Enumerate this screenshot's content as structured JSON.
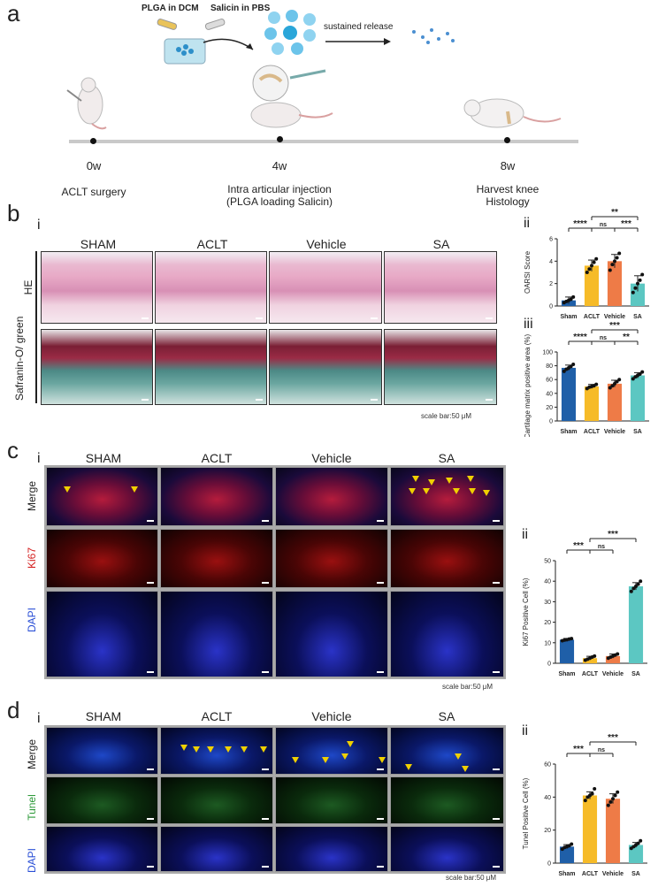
{
  "panel_a": {
    "letter": "a",
    "labels": {
      "plga": "PLGA in DCM",
      "salicin": "Salicin in PBS",
      "release": "sustained release"
    },
    "timepoints": [
      {
        "time": "0w",
        "desc": [
          "ACLT surgery"
        ]
      },
      {
        "time": "4w",
        "desc": [
          "Intra articular injection",
          "(PLGA loading Salicin)"
        ]
      },
      {
        "time": "8w",
        "desc": [
          "Harvest knee",
          "Histology"
        ]
      }
    ]
  },
  "panel_b": {
    "letter": "b",
    "sub_i": "i",
    "columns": [
      "SHAM",
      "ACLT",
      "Vehicle",
      "SA"
    ],
    "rows": [
      "HE",
      "Safranin-O/ green"
    ],
    "scale": "scale bar:50 μM",
    "sub_ii": "ii",
    "sub_iii": "iii"
  },
  "panel_c": {
    "letter": "c",
    "sub_i": "i",
    "columns": [
      "SHAM",
      "ACLT",
      "Vehicle",
      "SA"
    ],
    "rows": [
      "Merge",
      "Ki67",
      "DAPI"
    ],
    "scale": "scale bar:50 μM",
    "sub_ii": "ii"
  },
  "panel_d": {
    "letter": "d",
    "sub_i": "i",
    "columns": [
      "SHAM",
      "ACLT",
      "Vehicle",
      "SA"
    ],
    "rows": [
      "Merge",
      "Tunel",
      "DAPI"
    ],
    "scale": "scale bar:50 μM",
    "sub_ii": "ii"
  },
  "colors": {
    "sham": "#1f5fa8",
    "aclt": "#f6bb28",
    "vehicle": "#ee7b47",
    "sa": "#5cc7c2",
    "arrow": "#f0d000",
    "ki67_label": "#d42020",
    "dapi_label": "#2a4fd6",
    "tunel_label": "#2e9a3a"
  },
  "chart_data": [
    {
      "type": "bar",
      "ylabel": "OARSI Score",
      "categories": [
        "Sham",
        "ACLT",
        "Vehicle",
        "SA"
      ],
      "values": [
        0.5,
        3.6,
        4.0,
        2.0
      ],
      "errors": [
        0.3,
        0.5,
        0.6,
        0.7
      ],
      "points": [
        [
          0.3,
          0.4,
          0.5,
          0.6,
          0.8
        ],
        [
          3.0,
          3.3,
          3.6,
          3.9,
          4.2
        ],
        [
          3.2,
          3.7,
          4.0,
          4.3,
          4.7
        ],
        [
          1.2,
          1.6,
          2.0,
          2.3,
          2.8
        ]
      ],
      "ylim": [
        0,
        6
      ],
      "yticks": [
        0,
        2,
        4,
        6
      ],
      "significance": [
        {
          "from": 0,
          "to": 1,
          "label": "****",
          "level": 0
        },
        {
          "from": 1,
          "to": 2,
          "label": "ns",
          "level": 0
        },
        {
          "from": 2,
          "to": 3,
          "label": "***",
          "level": 0
        },
        {
          "from": 1,
          "to": 3,
          "label": "**",
          "level": 1
        }
      ]
    },
    {
      "type": "bar",
      "ylabel": "Cartilage matrix positive area (%)",
      "categories": [
        "Sham",
        "ACLT",
        "Vehicle",
        "SA"
      ],
      "values": [
        77,
        50,
        54,
        66
      ],
      "errors": [
        4,
        3,
        5,
        4
      ],
      "points": [
        [
          72,
          75,
          77,
          79,
          82
        ],
        [
          47,
          49,
          50,
          51,
          53
        ],
        [
          48,
          51,
          54,
          57,
          60
        ],
        [
          61,
          64,
          66,
          68,
          71
        ]
      ],
      "ylim": [
        0,
        100
      ],
      "yticks": [
        0,
        20,
        40,
        60,
        80,
        100
      ],
      "significance": [
        {
          "from": 0,
          "to": 1,
          "label": "****",
          "level": 0
        },
        {
          "from": 1,
          "to": 2,
          "label": "ns",
          "level": 0
        },
        {
          "from": 2,
          "to": 3,
          "label": "**",
          "level": 0
        },
        {
          "from": 1,
          "to": 3,
          "label": "***",
          "level": 1
        }
      ]
    },
    {
      "type": "bar",
      "ylabel": "Ki67 Positive Cell (%)",
      "categories": [
        "Sham",
        "ACLT",
        "Vehicle",
        "SA"
      ],
      "values": [
        11.5,
        2.5,
        3.5,
        37.5
      ],
      "errors": [
        0.6,
        0.9,
        1.0,
        1.8
      ],
      "points": [
        [
          11,
          11.3,
          11.5,
          11.8,
          12
        ],
        [
          1.5,
          2,
          2.5,
          3,
          3.5
        ],
        [
          2.5,
          3,
          3.5,
          4,
          4.5
        ],
        [
          35,
          36.5,
          37.5,
          38.5,
          40
        ]
      ],
      "ylim": [
        0,
        50
      ],
      "yticks": [
        0,
        10,
        20,
        30,
        40,
        50
      ],
      "significance": [
        {
          "from": 0,
          "to": 1,
          "label": "***",
          "level": 0
        },
        {
          "from": 1,
          "to": 2,
          "label": "ns",
          "level": 0
        },
        {
          "from": 1,
          "to": 3,
          "label": "***",
          "level": 1
        }
      ]
    },
    {
      "type": "bar",
      "ylabel": "Tunel Positive Cell (%)",
      "categories": [
        "Sham",
        "ACLT",
        "Vehicle",
        "SA"
      ],
      "values": [
        10,
        41,
        39,
        11
      ],
      "errors": [
        1.2,
        2.2,
        3.0,
        1.5
      ],
      "points": [
        [
          8.5,
          9.5,
          10,
          10.5,
          11.5
        ],
        [
          38,
          40,
          41,
          42,
          45
        ],
        [
          35,
          37,
          39,
          41,
          43
        ],
        [
          9,
          10,
          11,
          12,
          13.5
        ]
      ],
      "ylim": [
        0,
        60
      ],
      "yticks": [
        0,
        20,
        40,
        60
      ],
      "significance": [
        {
          "from": 0,
          "to": 1,
          "label": "***",
          "level": 0
        },
        {
          "from": 1,
          "to": 2,
          "label": "ns",
          "level": 0
        },
        {
          "from": 1,
          "to": 3,
          "label": "***",
          "level": 1
        }
      ]
    }
  ]
}
